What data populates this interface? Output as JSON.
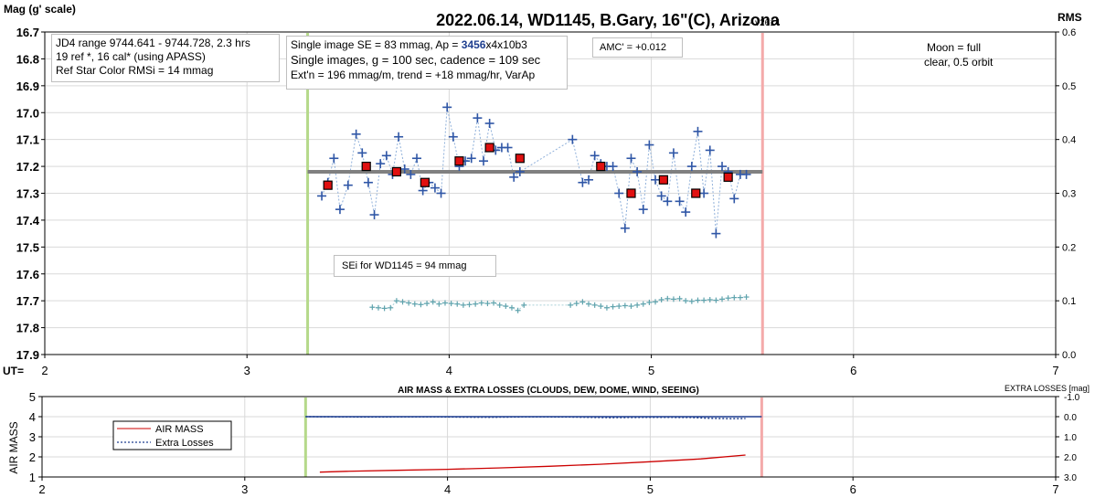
{
  "charts": {
    "main": {
      "title": "2022.06.14, WD1145, B.Gary, 16\"(C), Arizona",
      "version": "- v2614",
      "left_axis_label": "Mag (g' scale)",
      "right_axis_label": "RMS",
      "x_axis_label": "UT=",
      "y_ticks": [
        "16.7",
        "16.8",
        "16.9",
        "17.0",
        "17.1",
        "17.2",
        "17.3",
        "17.4",
        "17.5",
        "17.6",
        "17.7",
        "17.8",
        "17.9"
      ],
      "rms_ticks": [
        "0.6",
        "0.5",
        "0.4",
        "0.3",
        "0.2",
        "0.1",
        "0.0"
      ],
      "x_ticks": [
        "2",
        "3",
        "4",
        "5",
        "6",
        "7"
      ]
    },
    "bottom": {
      "title": "AIR MASS & EXTRA LOSSES (CLOUDS, DEW, DOME, WIND, SEEING)",
      "left_axis_label": "AIR MASS",
      "right_axis_label": "EXTRA LOSSES [mag]",
      "y_ticks": [
        "5",
        "4",
        "3",
        "2",
        "1"
      ],
      "right_ticks": [
        "-1.0",
        "0.0",
        "1.0",
        "2.0",
        "3.0"
      ],
      "x_ticks": [
        "2",
        "3",
        "4",
        "5",
        "6",
        "7"
      ]
    }
  },
  "annotations": {
    "box1": [
      "JD4 range 9744.641 - 9744.728, 2.3 hrs",
      "19 ref *, 16 cal* (using APASS)",
      "Ref Star Color RMSi = 14 mmag"
    ],
    "box2": {
      "line1_pre": "Single image SE = 83 mmag, Ap = ",
      "line1_ap": "3456",
      "line1_post": "x4x10b3",
      "line2": "Single images, g = 100 sec, cadence = 109 sec",
      "line3": "Ext'n = 196 mmag/m, trend = +18 mmag/hr, VarAp"
    },
    "amc": "AMC' = +0.012",
    "moon": [
      "Moon = full",
      "clear,  0.5 orbit"
    ],
    "sei": "SEi for WD1145 = 94 mmag",
    "legend": [
      "AIR MASS",
      "Extra Losses"
    ]
  },
  "chart_data": [
    {
      "type": "scatter",
      "title": "2022.06.14, WD1145, B.Gary, 16\"(C), Arizona",
      "xlabel": "UT=",
      "ylabel": "Mag (g' scale)",
      "y2label": "RMS",
      "xlim": [
        2,
        7
      ],
      "ylim": [
        17.9,
        16.7
      ],
      "y2lim": [
        0.0,
        0.6
      ],
      "grid": true,
      "markers_ut": [
        3.3,
        5.55
      ],
      "model_level": {
        "x": [
          3.3,
          5.55
        ],
        "y": 17.22
      },
      "series": [
        {
          "name": "",
          "x": [
            3.37,
            3.4,
            3.43,
            3.46,
            3.5,
            3.54,
            3.57,
            3.6,
            3.63,
            3.66,
            3.69,
            3.72,
            3.75,
            3.78,
            3.81,
            3.84,
            3.87,
            3.9,
            3.93,
            3.96,
            3.99,
            4.02,
            4.05,
            4.08,
            4.11,
            4.14,
            4.17,
            4.2,
            4.23,
            4.26,
            4.29,
            4.32,
            4.35,
            4.61,
            4.66,
            4.69,
            4.72,
            4.75,
            4.78,
            4.81,
            4.84,
            4.87,
            4.9,
            4.93,
            4.96,
            4.99,
            5.02,
            5.05,
            5.08,
            5.11,
            5.14,
            5.17,
            5.2,
            5.23,
            5.26,
            5.29,
            5.32,
            5.35,
            5.38,
            5.41,
            5.44,
            5.47
          ],
          "y": [
            17.31,
            17.26,
            17.17,
            17.36,
            17.27,
            17.08,
            17.15,
            17.26,
            17.38,
            17.19,
            17.16,
            17.23,
            17.09,
            17.21,
            17.23,
            17.17,
            17.29,
            17.26,
            17.28,
            17.3,
            16.98,
            17.09,
            17.2,
            17.18,
            17.17,
            17.02,
            17.18,
            17.04,
            17.14,
            17.13,
            17.13,
            17.24,
            17.22,
            17.1,
            17.26,
            17.25,
            17.16,
            17.19,
            17.2,
            17.2,
            17.3,
            17.43,
            17.17,
            17.22,
            17.36,
            17.12,
            17.25,
            17.31,
            17.33,
            17.15,
            17.33,
            17.37,
            17.2,
            17.07,
            17.3,
            17.14,
            17.45,
            17.2,
            17.22,
            17.32,
            17.23,
            17.23
          ]
        },
        {
          "name": "",
          "x": [
            3.4,
            3.59,
            3.74,
            3.88,
            4.05,
            4.2,
            4.35,
            4.75,
            4.9,
            5.06,
            5.22,
            5.38
          ],
          "y": [
            17.27,
            17.2,
            17.22,
            17.26,
            17.18,
            17.13,
            17.17,
            17.2,
            17.3,
            17.25,
            17.3,
            17.24
          ]
        },
        {
          "name": "SEi",
          "axis": "rms",
          "x": [
            3.62,
            3.65,
            3.68,
            3.71,
            3.74,
            3.77,
            3.8,
            3.83,
            3.86,
            3.89,
            3.92,
            3.95,
            3.98,
            4.01,
            4.04,
            4.07,
            4.1,
            4.13,
            4.16,
            4.19,
            4.22,
            4.25,
            4.28,
            4.31,
            4.34,
            4.37,
            4.6,
            4.63,
            4.66,
            4.69,
            4.72,
            4.75,
            4.78,
            4.81,
            4.84,
            4.87,
            4.9,
            4.93,
            4.96,
            4.99,
            5.02,
            5.05,
            5.08,
            5.11,
            5.14,
            5.17,
            5.2,
            5.23,
            5.26,
            5.29,
            5.32,
            5.35,
            5.38,
            5.41,
            5.44,
            5.47
          ],
          "y": [
            0.088,
            0.087,
            0.086,
            0.087,
            0.1,
            0.098,
            0.096,
            0.094,
            0.093,
            0.095,
            0.098,
            0.094,
            0.096,
            0.095,
            0.094,
            0.092,
            0.093,
            0.094,
            0.096,
            0.095,
            0.096,
            0.092,
            0.09,
            0.087,
            0.082,
            0.092,
            0.092,
            0.095,
            0.098,
            0.094,
            0.092,
            0.09,
            0.087,
            0.089,
            0.09,
            0.091,
            0.09,
            0.092,
            0.094,
            0.097,
            0.098,
            0.102,
            0.104,
            0.103,
            0.104,
            0.1,
            0.099,
            0.101,
            0.101,
            0.102,
            0.101,
            0.103,
            0.105,
            0.106,
            0.106,
            0.107
          ]
        }
      ]
    },
    {
      "type": "line",
      "title": "AIR MASS & EXTRA LOSSES (CLOUDS, DEW, DOME, WIND, SEEING)",
      "xlabel": "",
      "ylabel": "AIR MASS",
      "y2label": "EXTRA LOSSES [mag]",
      "xlim": [
        2,
        7
      ],
      "ylim": [
        1,
        5
      ],
      "y2lim": [
        3.0,
        -1.0
      ],
      "grid": true,
      "legend": "top-left",
      "series": [
        {
          "name": "AIR MASS",
          "x": [
            3.37,
            3.5,
            3.75,
            4.0,
            4.25,
            4.5,
            4.75,
            5.0,
            5.25,
            5.47
          ],
          "y": [
            1.24,
            1.28,
            1.33,
            1.38,
            1.45,
            1.53,
            1.63,
            1.76,
            1.9,
            2.09
          ]
        },
        {
          "name": "Extra Losses",
          "axis": "right",
          "x": [
            3.3,
            3.6,
            3.9,
            4.2,
            4.4,
            4.6,
            4.8,
            5.0,
            5.2,
            5.3,
            5.4,
            5.47
          ],
          "y": [
            0.0,
            0.02,
            0.01,
            0.03,
            0.01,
            0.02,
            0.05,
            0.03,
            0.04,
            0.08,
            0.1,
            0.09
          ]
        }
      ]
    }
  ]
}
